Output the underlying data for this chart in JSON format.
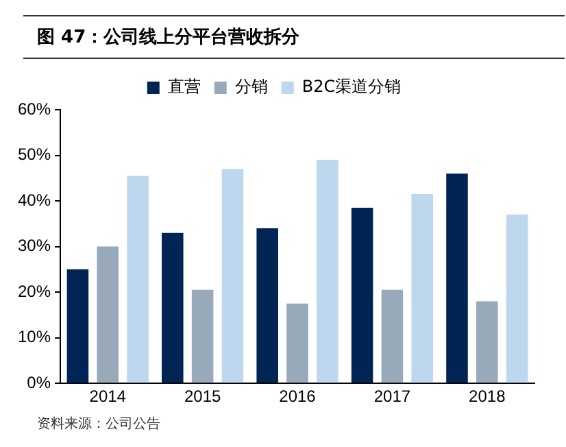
{
  "chart_data": {
    "type": "bar",
    "title": "图 47：公司线上分平台营收拆分",
    "categories": [
      "2014",
      "2015",
      "2016",
      "2017",
      "2018"
    ],
    "series": [
      {
        "name": "直营",
        "color": "#002453",
        "values": [
          25,
          33,
          34,
          38.5,
          46
        ]
      },
      {
        "name": "分销",
        "color": "#98a9ba",
        "values": [
          30,
          20.5,
          17.5,
          20.5,
          18
        ]
      },
      {
        "name": "B2C渠道分销",
        "color": "#bdd7ee",
        "values": [
          45.5,
          47,
          49,
          41.5,
          37
        ]
      }
    ],
    "ylim": [
      0,
      60
    ],
    "yticks": [
      {
        "value": 0,
        "label": "0%"
      },
      {
        "value": 10,
        "label": "10%"
      },
      {
        "value": 20,
        "label": "20%"
      },
      {
        "value": 30,
        "label": "30%"
      },
      {
        "value": 40,
        "label": "40%"
      },
      {
        "value": 50,
        "label": "50%"
      },
      {
        "value": 60,
        "label": "60%"
      }
    ],
    "grid": false,
    "legend": "top",
    "annotations": [
      "资料来源：公司公告"
    ]
  }
}
